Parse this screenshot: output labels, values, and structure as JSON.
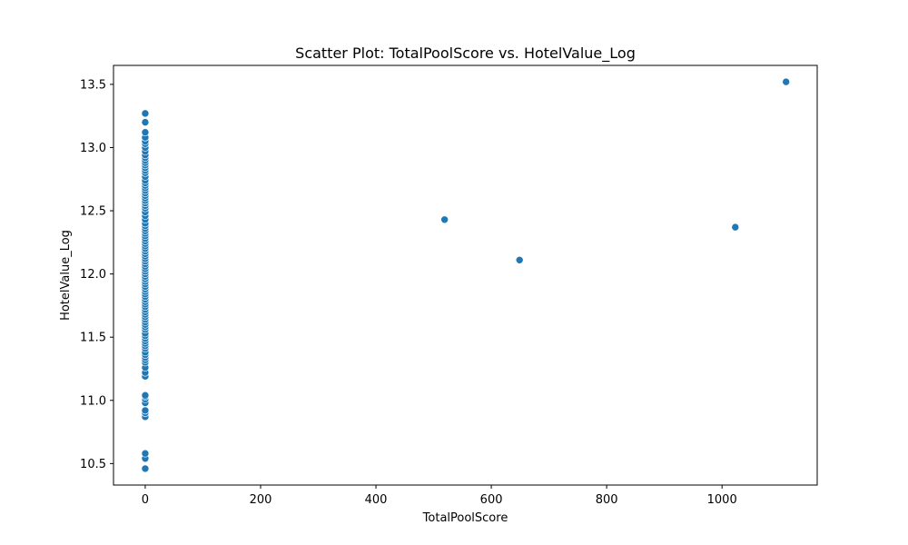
{
  "chart_data": {
    "type": "scatter",
    "title": "Scatter Plot: TotalPoolScore vs. HotelValue_Log",
    "xlabel": "TotalPoolScore",
    "ylabel": "HotelValue_Log",
    "xlim": [
      -55,
      1165
    ],
    "ylim": [
      10.33,
      13.65
    ],
    "xticks": [
      0,
      200,
      400,
      600,
      800,
      1000
    ],
    "xtick_labels": [
      "0",
      "200",
      "400",
      "600",
      "800",
      "1000"
    ],
    "yticks": [
      10.5,
      11.0,
      11.5,
      12.0,
      12.5,
      13.0,
      13.5
    ],
    "ytick_labels": [
      "10.5",
      "11.0",
      "11.5",
      "12.0",
      "12.5",
      "13.0",
      "13.5"
    ],
    "grid": false,
    "marker_color": "#1f77b4",
    "series": [
      {
        "x": [
          0,
          0,
          0,
          0,
          0,
          0,
          0,
          0,
          0,
          0,
          0,
          0,
          0,
          0,
          0,
          0,
          0,
          0,
          0,
          0,
          0,
          0,
          0,
          0,
          0,
          0,
          0,
          0,
          0,
          0,
          0,
          0,
          0,
          0,
          0,
          0,
          0,
          0,
          0,
          0,
          0,
          0,
          0,
          0,
          0,
          0,
          0,
          0,
          0,
          0,
          0,
          0,
          0,
          0,
          0,
          0,
          0,
          0,
          0,
          0,
          0,
          0,
          0,
          0,
          0,
          0,
          0,
          0,
          0,
          0,
          0,
          0,
          0,
          0,
          0,
          0,
          0,
          0,
          0,
          0,
          0,
          0,
          0,
          0,
          0,
          0,
          0,
          0,
          0,
          0,
          0,
          0,
          0,
          0,
          0,
          0,
          0,
          0,
          0,
          0,
          519,
          649,
          1023,
          1111
        ],
        "y": [
          10.46,
          10.54,
          10.58,
          10.87,
          10.9,
          10.92,
          10.98,
          11.01,
          11.03,
          11.04,
          11.19,
          11.22,
          11.26,
          11.3,
          11.32,
          11.34,
          11.36,
          11.38,
          11.41,
          11.43,
          11.45,
          11.47,
          11.49,
          11.51,
          11.53,
          11.56,
          11.58,
          11.6,
          11.62,
          11.64,
          11.66,
          11.68,
          11.7,
          11.72,
          11.74,
          11.76,
          11.78,
          11.8,
          11.82,
          11.84,
          11.86,
          11.88,
          11.9,
          11.92,
          11.94,
          11.96,
          11.98,
          12.0,
          12.02,
          12.04,
          12.06,
          12.08,
          12.1,
          12.12,
          12.14,
          12.16,
          12.18,
          12.2,
          12.22,
          12.24,
          12.26,
          12.28,
          12.3,
          12.32,
          12.34,
          12.36,
          12.38,
          12.4,
          12.43,
          12.46,
          12.49,
          12.52,
          12.54,
          12.56,
          12.58,
          12.6,
          12.62,
          12.64,
          12.66,
          12.68,
          12.7,
          12.72,
          12.74,
          12.77,
          12.8,
          12.82,
          12.84,
          12.86,
          12.88,
          12.9,
          12.92,
          12.94,
          12.97,
          13.0,
          13.03,
          13.05,
          13.08,
          13.12,
          13.2,
          13.27,
          12.43,
          12.11,
          12.37,
          13.52
        ]
      }
    ]
  }
}
